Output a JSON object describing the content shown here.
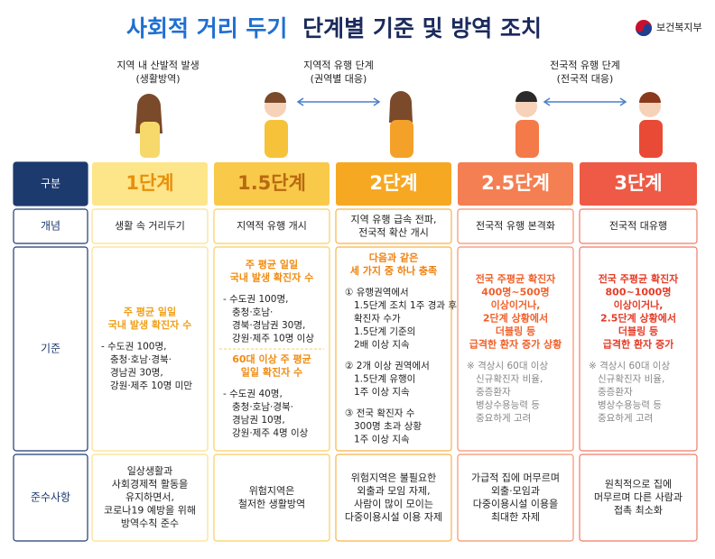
{
  "header": {
    "title_part1": "사회적 거리 두기",
    "title_part2": "단계별 기준 및 방역 조치",
    "ministry": "보건복지부",
    "title_color1": "#1f6fd1",
    "title_color2": "#1b2a5c"
  },
  "annotations": [
    {
      "lines": [
        "지역 내 산발적 발생",
        "(생활방역)"
      ],
      "arrow": false
    },
    {
      "lines": [
        "지역적 유행 단계",
        "(권역별 대응)"
      ],
      "arrow": true
    },
    {
      "lines": [
        "전국적 유행 단계",
        "(전국적 대응)"
      ],
      "arrow": true
    }
  ],
  "table": {
    "row_labels": [
      "구분",
      "개념",
      "기준",
      "준수사항"
    ],
    "label_color": "#1d3a6e",
    "columns": [
      {
        "stage": "1단계",
        "header_fill": "#fde58a",
        "header_text": "#e8900c",
        "border": "#fbe08a",
        "accent": "#f0a01a",
        "concept": [
          "생활 속 거리두기"
        ],
        "criteria": [
          {
            "kind": "highlight",
            "lines": [
              "주 평균 일일",
              "국내 발생 확진자 수"
            ]
          },
          {
            "kind": "list",
            "lines": [
              "- 수도권 100명,",
              "충청·호남·경북·",
              "경남권 30명,",
              "강원·제주 10명 미만"
            ]
          }
        ],
        "rules": [
          "일상생활과",
          "사회경제적 활동을",
          "유지하면서,",
          "코로나19 예방을 위해",
          "방역수칙 준수"
        ]
      },
      {
        "stage": "1.5단계",
        "header_fill": "#f9c94a",
        "header_text": "#b86a10",
        "border": "#f9cf60",
        "accent": "#f08c12",
        "concept": [
          "지역적 유행 개시"
        ],
        "criteria": [
          {
            "kind": "highlight",
            "lines": [
              "주 평균 일일",
              "국내 발생 확진자 수"
            ]
          },
          {
            "kind": "list",
            "lines": [
              "- 수도권 100명,",
              "충청·호남·",
              "경북·경남권 30명,",
              "강원·제주 10명 이상"
            ]
          },
          {
            "kind": "highlight",
            "lines": [
              "60대 이상 주 평균",
              "일일 확진자 수"
            ]
          },
          {
            "kind": "list",
            "lines": [
              "- 수도권 40명,",
              "충청·호남·경북·",
              "경남권 10명,",
              "강원·제주 4명 이상"
            ]
          }
        ],
        "rules": [
          "위험지역은",
          "철저한 생활방역"
        ]
      },
      {
        "stage": "2단계",
        "header_fill": "#f6a823",
        "header_text": "#ffffff",
        "border": "#f7b347",
        "accent": "#f08010",
        "concept": [
          "지역 유행 급속 전파,",
          "전국적 확산 개시"
        ],
        "criteria": [
          {
            "kind": "highlight",
            "lines": [
              "다음과 같은",
              "세 가지 중 하나 충족"
            ]
          },
          {
            "kind": "list",
            "lines": [
              "① 유행권역에서",
              "1.5단계 조치 1주 경과 후,",
              "확진자 수가",
              "1.5단계 기준의",
              "2배 이상 지속"
            ]
          },
          {
            "kind": "list",
            "lines": [
              "② 2개 이상 권역에서",
              "1.5단계 유행이",
              "1주 이상 지속"
            ]
          },
          {
            "kind": "list",
            "lines": [
              "③ 전국 확진자 수",
              "300명 초과 상황",
              "1주 이상 지속"
            ]
          }
        ],
        "rules": [
          "위험지역은 불필요한",
          "외출과 모임 자제,",
          "사람이 많이 모이는",
          "다중이용시설 이용 자제"
        ]
      },
      {
        "stage": "2.5단계",
        "header_fill": "#f47f52",
        "header_text": "#ffffff",
        "border": "#f59270",
        "accent": "#f0602a",
        "concept": [
          "전국적 유행 본격화"
        ],
        "criteria": [
          {
            "kind": "highlight",
            "lines": [
              "전국 주평균 확진자",
              "400명~500명",
              "이상이거나,",
              "2단계 상황에서",
              "더블링 등",
              "급격한 환자 증가 상황"
            ]
          },
          {
            "kind": "note",
            "lines": [
              "※ 격상시 60대 이상",
              "신규확진자 비율,",
              "중증환자",
              "병상수용능력 등",
              "중요하게 고려"
            ]
          }
        ],
        "rules": [
          "가급적 집에 머무르며",
          "외출·모임과",
          "다중이용시설 이용을",
          "최대한 자제"
        ]
      },
      {
        "stage": "3단계",
        "header_fill": "#ee5a45",
        "header_text": "#ffffff",
        "border": "#f07a68",
        "accent": "#e63a25",
        "concept": [
          "전국적 대유행"
        ],
        "criteria": [
          {
            "kind": "highlight",
            "lines": [
              "전국 주평균 확진자",
              "800~1000명",
              "이상이거나,",
              "2.5단계 상황에서",
              "더블링 등",
              "급격한 환자 증가"
            ]
          },
          {
            "kind": "note",
            "lines": [
              "※ 격상시 60대 이상",
              "신규확진자 비율,",
              "중증환자",
              "병상수용능력 등",
              "중요하게 고려"
            ]
          }
        ],
        "rules": [
          "원칙적으로 집에",
          "머무르며 다른 사람과",
          "접촉 최소화"
        ]
      }
    ]
  }
}
